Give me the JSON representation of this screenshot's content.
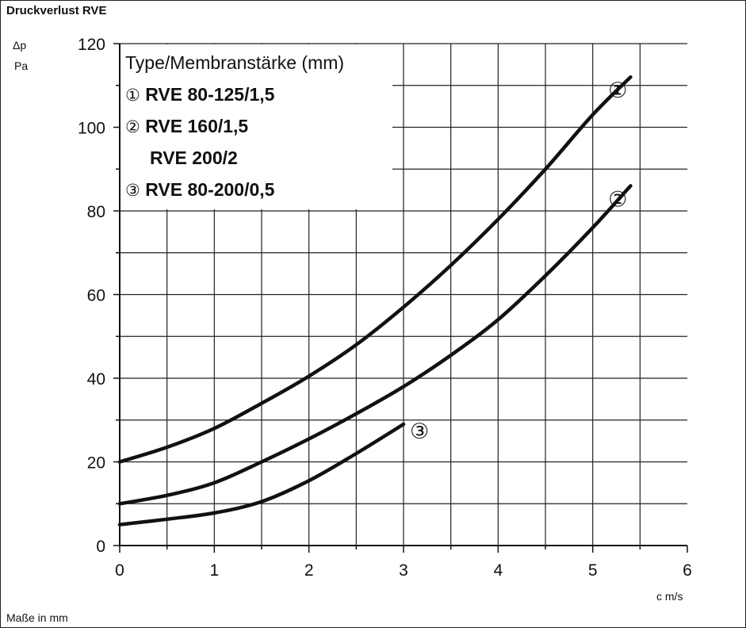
{
  "title": "Druckverlust RVE",
  "note": "Maße in mm",
  "chart_data": {
    "type": "line",
    "ylabel": "Δp",
    "yunit": "Pa",
    "xunit": "c m/s",
    "xlim": [
      0,
      6
    ],
    "ylim": [
      0,
      120
    ],
    "x_ticks": [
      "0",
      "1",
      "2",
      "3",
      "4",
      "5",
      "6"
    ],
    "y_ticks": [
      "0",
      "20",
      "40",
      "60",
      "80",
      "100",
      "120"
    ],
    "grid": true,
    "legend": {
      "title": "Type/Membranstärke (mm)",
      "placement": "top-left",
      "entries": [
        {
          "marker": "①",
          "text": "RVE 80-125/1,5"
        },
        {
          "marker": "②",
          "text": "RVE 160/1,5"
        },
        {
          "marker": "",
          "text": "RVE 200/2"
        },
        {
          "marker": "③",
          "text": "RVE 80-200/0,5"
        }
      ]
    },
    "series": [
      {
        "marker": "①",
        "x": [
          0,
          0.5,
          1,
          1.5,
          2,
          2.5,
          3,
          3.5,
          4,
          4.5,
          5,
          5.4
        ],
        "y": [
          20,
          23.5,
          28,
          34,
          40.5,
          48,
          57,
          67,
          78,
          90,
          103,
          112
        ]
      },
      {
        "marker": "②",
        "x": [
          0,
          0.5,
          1,
          1.5,
          2,
          2.5,
          3,
          3.5,
          4,
          4.5,
          5,
          5.4
        ],
        "y": [
          10,
          12,
          15,
          20,
          25.5,
          31.5,
          38,
          45.5,
          54,
          64.5,
          76,
          86
        ]
      },
      {
        "marker": "③",
        "x": [
          0,
          0.5,
          1,
          1.5,
          2,
          2.5,
          3
        ],
        "y": [
          5,
          6.3,
          7.8,
          10.5,
          15.5,
          22,
          29
        ]
      }
    ]
  }
}
